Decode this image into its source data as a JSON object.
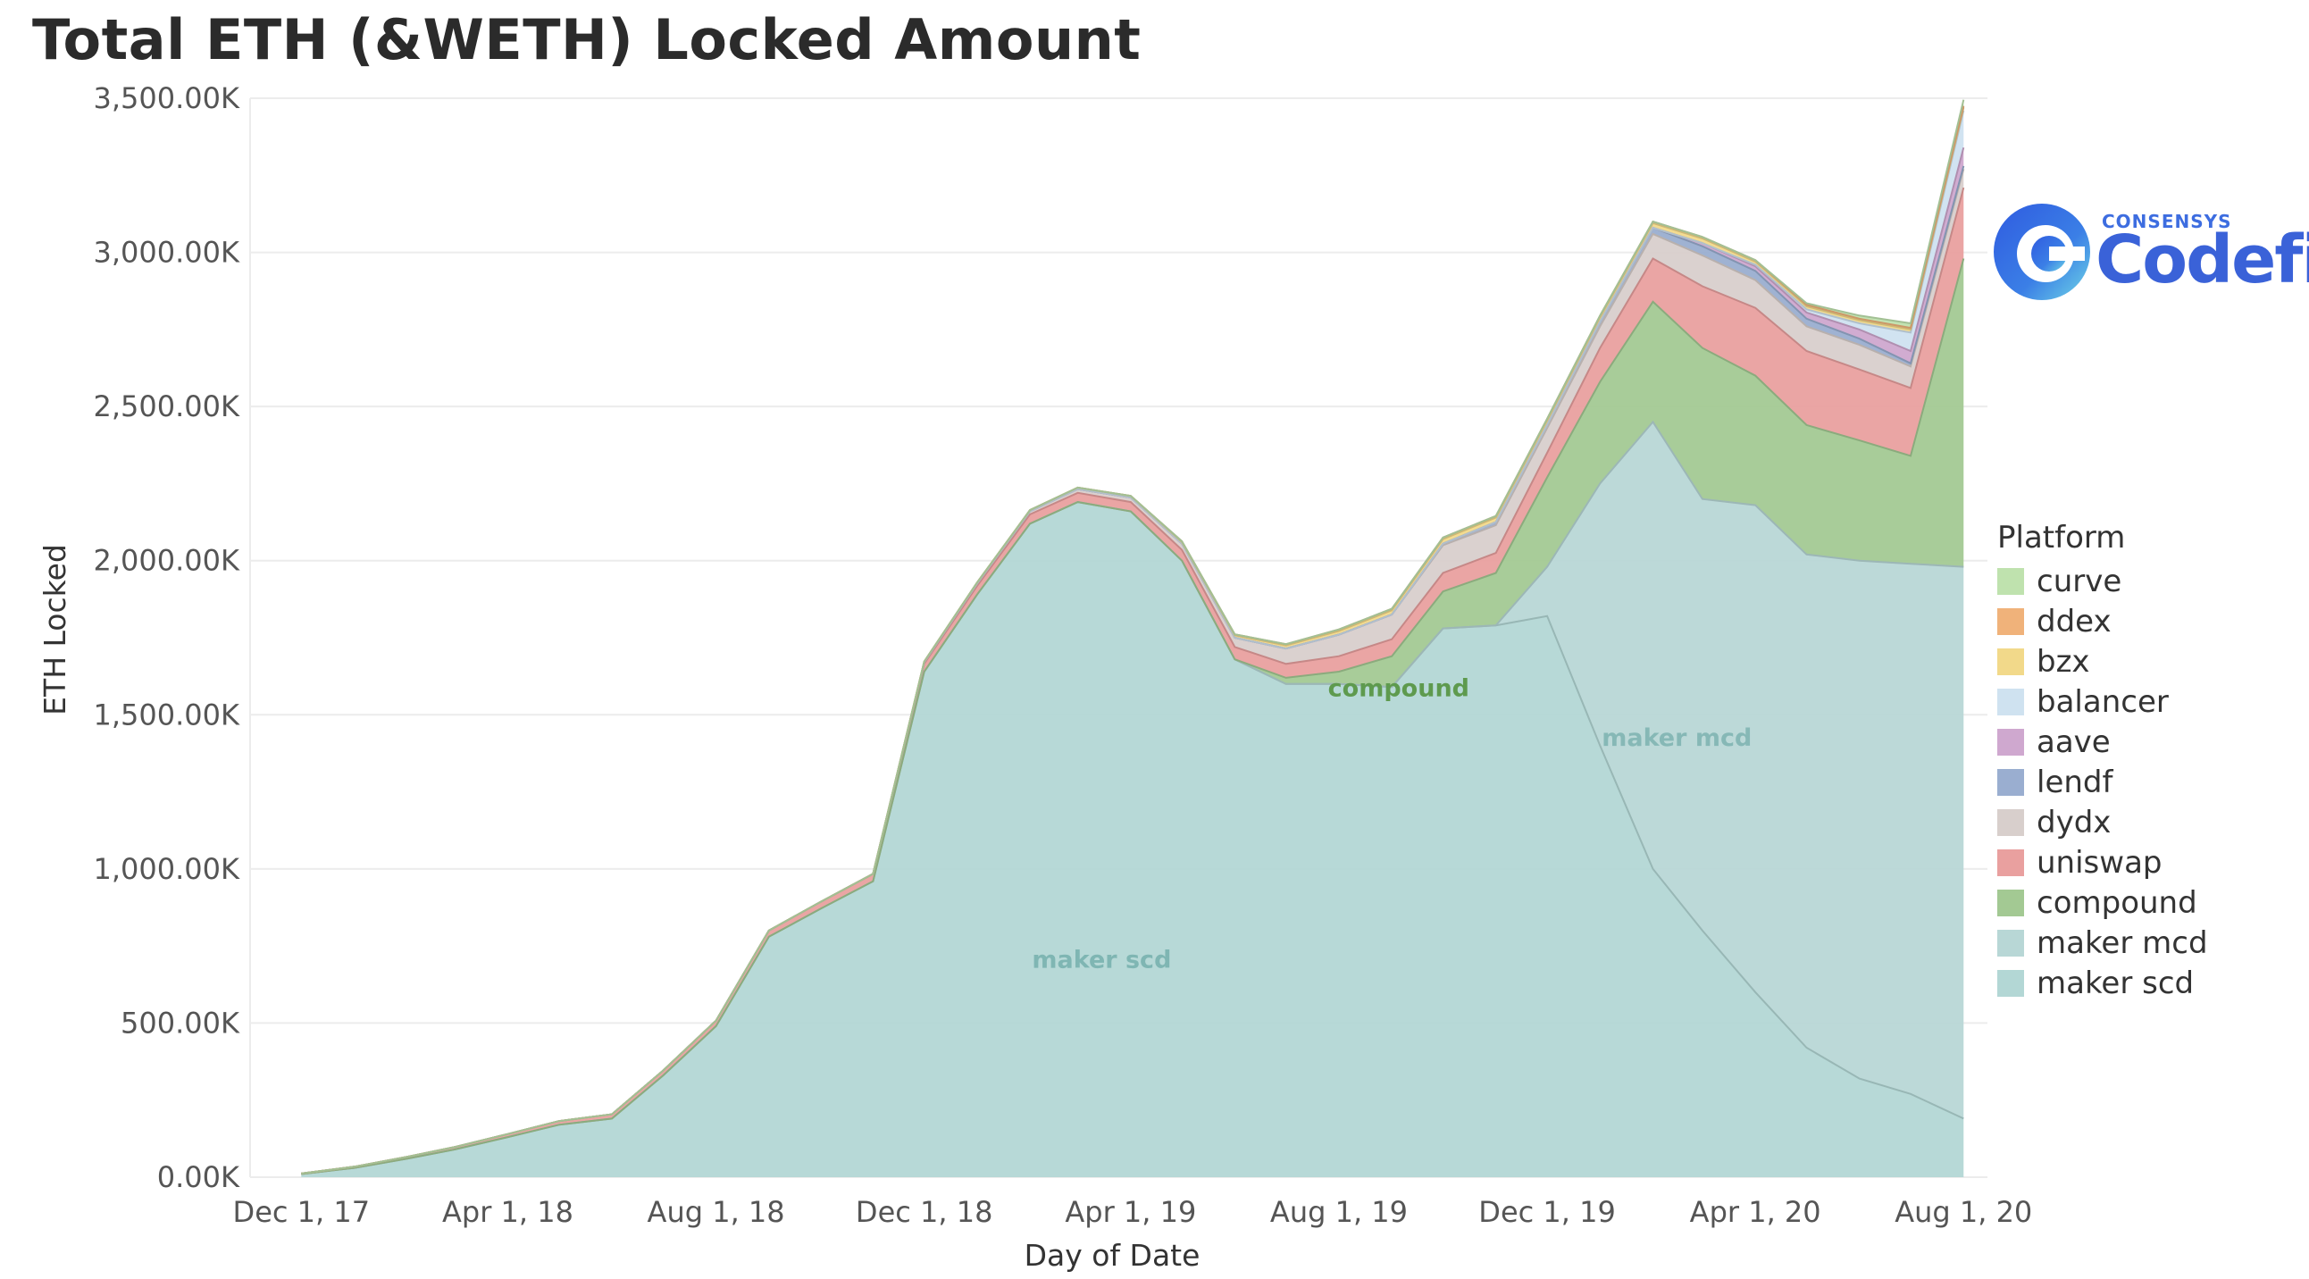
{
  "title": "Total ETH (&WETH) Locked Amount",
  "logo": {
    "brand": "CONSENSYS",
    "name": "Codefi"
  },
  "legend_title": "Platform",
  "chart_data": {
    "type": "area",
    "stacked": true,
    "xlabel": "Day of Date",
    "ylabel": "ETH Locked",
    "ylim": [
      0,
      3500
    ],
    "y_ticks": [
      0,
      500,
      1000,
      1500,
      2000,
      2500,
      3000,
      3500
    ],
    "y_tick_labels": [
      "0.00K",
      "500.00K",
      "1,000.00K",
      "1,500.00K",
      "2,000.00K",
      "2,500.00K",
      "3,000.00K",
      "3,500.00K"
    ],
    "x_ticks": [
      "2017-12-01",
      "2018-04-01",
      "2018-08-01",
      "2018-12-01",
      "2019-04-01",
      "2019-08-01",
      "2019-12-01",
      "2020-04-01",
      "2020-08-01"
    ],
    "x_tick_labels": [
      "Dec 1, 17",
      "Apr 1, 18",
      "Aug 1, 18",
      "Dec 1, 18",
      "Apr 1, 19",
      "Aug 1, 19",
      "Dec 1, 19",
      "Apr 1, 20",
      "Aug 1, 20"
    ],
    "xlim": [
      "2017-11-01",
      "2020-08-15"
    ],
    "grid": true,
    "legend_position": "right",
    "area_labels": [
      {
        "text": "maker scd",
        "series": "maker scd",
        "x": "2019-03-15",
        "y": 680
      },
      {
        "text": "compound",
        "series": "compound",
        "x": "2019-09-05",
        "y": 1560
      },
      {
        "text": "maker mcd",
        "series": "maker mcd",
        "x": "2020-02-15",
        "y": 1400
      }
    ],
    "x": [
      "2017-12-01",
      "2018-01-01",
      "2018-02-01",
      "2018-03-01",
      "2018-04-01",
      "2018-05-01",
      "2018-06-01",
      "2018-07-01",
      "2018-08-01",
      "2018-09-01",
      "2018-10-01",
      "2018-11-01",
      "2018-12-01",
      "2019-01-01",
      "2019-02-01",
      "2019-03-01",
      "2019-04-01",
      "2019-05-01",
      "2019-06-01",
      "2019-07-01",
      "2019-08-01",
      "2019-09-01",
      "2019-10-01",
      "2019-11-01",
      "2019-12-01",
      "2020-01-01",
      "2020-02-01",
      "2020-03-01",
      "2020-04-01",
      "2020-05-01",
      "2020-06-01",
      "2020-07-01",
      "2020-08-01"
    ],
    "series": [
      {
        "name": "maker scd",
        "color": "#b3d7d5",
        "values": [
          10,
          30,
          60,
          90,
          130,
          170,
          190,
          330,
          490,
          780,
          870,
          960,
          1640,
          1890,
          2120,
          2190,
          2160,
          2000,
          1680,
          1600,
          1600,
          1590,
          1780,
          1790,
          1820,
          1400,
          1000,
          800,
          600,
          420,
          320,
          270,
          190
        ]
      },
      {
        "name": "maker mcd",
        "color": "#b8d7d6",
        "values": [
          0,
          0,
          0,
          0,
          0,
          0,
          0,
          0,
          0,
          0,
          0,
          0,
          0,
          0,
          0,
          0,
          0,
          0,
          0,
          0,
          0,
          0,
          0,
          0,
          160,
          850,
          1450,
          1400,
          1580,
          1600,
          1680,
          1720,
          1790
        ]
      },
      {
        "name": "compound",
        "color": "#a3c993",
        "values": [
          0,
          0,
          0,
          0,
          0,
          0,
          0,
          0,
          0,
          0,
          0,
          0,
          0,
          0,
          0,
          0,
          0,
          0,
          0,
          20,
          40,
          100,
          120,
          170,
          290,
          330,
          390,
          490,
          420,
          420,
          390,
          350,
          1000
        ]
      },
      {
        "name": "uniswap",
        "color": "#e9a09f",
        "values": [
          2,
          4,
          6,
          8,
          10,
          12,
          14,
          16,
          18,
          20,
          22,
          24,
          26,
          28,
          30,
          30,
          30,
          35,
          40,
          45,
          50,
          55,
          60,
          65,
          80,
          110,
          140,
          200,
          220,
          240,
          230,
          220,
          230
        ]
      },
      {
        "name": "dydx",
        "color": "#d8cfcc",
        "values": [
          0,
          0,
          0,
          0,
          0,
          0,
          0,
          0,
          0,
          0,
          0,
          0,
          5,
          8,
          10,
          12,
          15,
          20,
          30,
          50,
          70,
          80,
          90,
          90,
          80,
          70,
          80,
          100,
          90,
          80,
          80,
          70,
          60
        ]
      },
      {
        "name": "lendf",
        "color": "#9aaed0",
        "values": [
          0,
          0,
          0,
          0,
          0,
          0,
          0,
          0,
          0,
          0,
          0,
          0,
          0,
          0,
          0,
          0,
          0,
          0,
          0,
          0,
          0,
          0,
          5,
          10,
          10,
          15,
          20,
          30,
          30,
          25,
          20,
          10,
          10
        ]
      },
      {
        "name": "aave",
        "color": "#cfa8cf",
        "values": [
          0,
          0,
          0,
          0,
          0,
          0,
          0,
          0,
          0,
          0,
          0,
          0,
          0,
          0,
          0,
          0,
          0,
          0,
          0,
          0,
          0,
          0,
          0,
          0,
          0,
          0,
          0,
          10,
          15,
          20,
          30,
          40,
          60
        ]
      },
      {
        "name": "balancer",
        "color": "#cfe2f0",
        "values": [
          0,
          0,
          0,
          0,
          0,
          0,
          0,
          0,
          0,
          0,
          0,
          0,
          0,
          0,
          0,
          0,
          0,
          0,
          0,
          0,
          0,
          0,
          0,
          0,
          0,
          0,
          0,
          0,
          5,
          10,
          20,
          60,
          120
        ]
      },
      {
        "name": "bzx",
        "color": "#f2d98a",
        "values": [
          0,
          0,
          0,
          0,
          0,
          0,
          0,
          0,
          0,
          0,
          0,
          0,
          2,
          3,
          4,
          5,
          5,
          6,
          8,
          10,
          12,
          14,
          15,
          15,
          15,
          15,
          15,
          15,
          10,
          10,
          10,
          10,
          10
        ]
      },
      {
        "name": "ddex",
        "color": "#f0b27a",
        "values": [
          0,
          0,
          0,
          0,
          0,
          0,
          0,
          0,
          0,
          0,
          0,
          0,
          0,
          0,
          0,
          0,
          0,
          2,
          3,
          4,
          5,
          5,
          5,
          5,
          5,
          5,
          5,
          5,
          5,
          5,
          5,
          5,
          5
        ]
      },
      {
        "name": "curve",
        "color": "#bfe2ae",
        "values": [
          0,
          0,
          0,
          0,
          0,
          0,
          0,
          0,
          0,
          0,
          0,
          0,
          0,
          0,
          0,
          0,
          0,
          0,
          0,
          0,
          0,
          0,
          0,
          0,
          0,
          0,
          0,
          0,
          0,
          5,
          10,
          15,
          20
        ]
      }
    ],
    "legend_order": [
      "curve",
      "ddex",
      "bzx",
      "balancer",
      "aave",
      "lendf",
      "dydx",
      "uniswap",
      "compound",
      "maker mcd",
      "maker scd"
    ]
  }
}
